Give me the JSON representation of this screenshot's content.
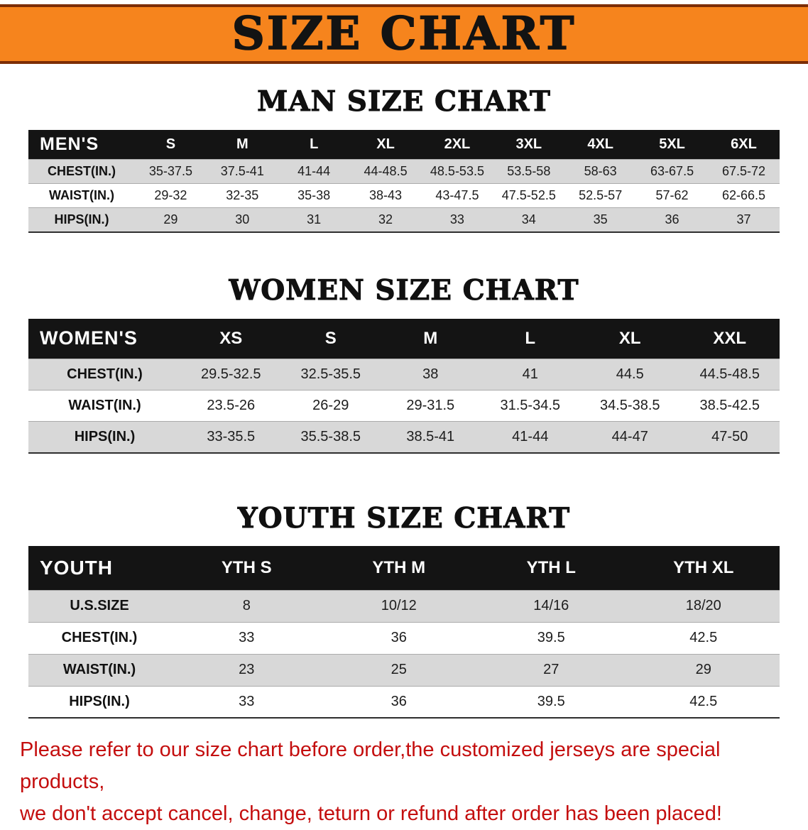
{
  "colors": {
    "banner-bg": "#f6841d",
    "banner-border": "#7c2d05",
    "header-bg": "#141414",
    "row-gray": "#d8d8d8",
    "footer-red": "#c40e0e"
  },
  "banner": {
    "title": "SIZE CHART"
  },
  "sections": [
    {
      "heading": "MAN SIZE CHART",
      "table": {
        "header": [
          "MEN'S",
          "S",
          "M",
          "L",
          "XL",
          "2XL",
          "3XL",
          "4XL",
          "5XL",
          "6XL"
        ],
        "rows": [
          [
            "CHEST(IN.)",
            "35-37.5",
            "37.5-41",
            "41-44",
            "44-48.5",
            "48.5-53.5",
            "53.5-58",
            "58-63",
            "63-67.5",
            "67.5-72"
          ],
          [
            "WAIST(IN.)",
            "29-32",
            "32-35",
            "35-38",
            "38-43",
            "43-47.5",
            "47.5-52.5",
            "52.5-57",
            "57-62",
            "62-66.5"
          ],
          [
            "HIPS(IN.)",
            "29",
            "30",
            "31",
            "32",
            "33",
            "34",
            "35",
            "36",
            "37"
          ]
        ]
      }
    },
    {
      "heading": "WOMEN SIZE CHART",
      "table": {
        "header": [
          "WOMEN'S",
          "XS",
          "S",
          "M",
          "L",
          "XL",
          "XXL"
        ],
        "rows": [
          [
            "CHEST(IN.)",
            "29.5-32.5",
            "32.5-35.5",
            "38",
            "41",
            "44.5",
            "44.5-48.5"
          ],
          [
            "WAIST(IN.)",
            "23.5-26",
            "26-29",
            "29-31.5",
            "31.5-34.5",
            "34.5-38.5",
            "38.5-42.5"
          ],
          [
            "HIPS(IN.)",
            "33-35.5",
            "35.5-38.5",
            "38.5-41",
            "41-44",
            "44-47",
            "47-50"
          ]
        ]
      }
    },
    {
      "heading": "YOUTH SIZE CHART",
      "table": {
        "header": [
          "YOUTH",
          "YTH S",
          "YTH M",
          "YTH L",
          "YTH XL"
        ],
        "rows": [
          [
            "U.S.SIZE",
            "8",
            "10/12",
            "14/16",
            "18/20"
          ],
          [
            "CHEST(IN.)",
            "33",
            "36",
            "39.5",
            "42.5"
          ],
          [
            "WAIST(IN.)",
            "23",
            "25",
            "27",
            "29"
          ],
          [
            "HIPS(IN.)",
            "33",
            "36",
            "39.5",
            "42.5"
          ]
        ]
      }
    }
  ],
  "footer": {
    "line1": "Please refer to our size chart before order,the customized jerseys are special products,",
    "line2": "we don't accept cancel, change, teturn or refund after order has been placed!"
  }
}
